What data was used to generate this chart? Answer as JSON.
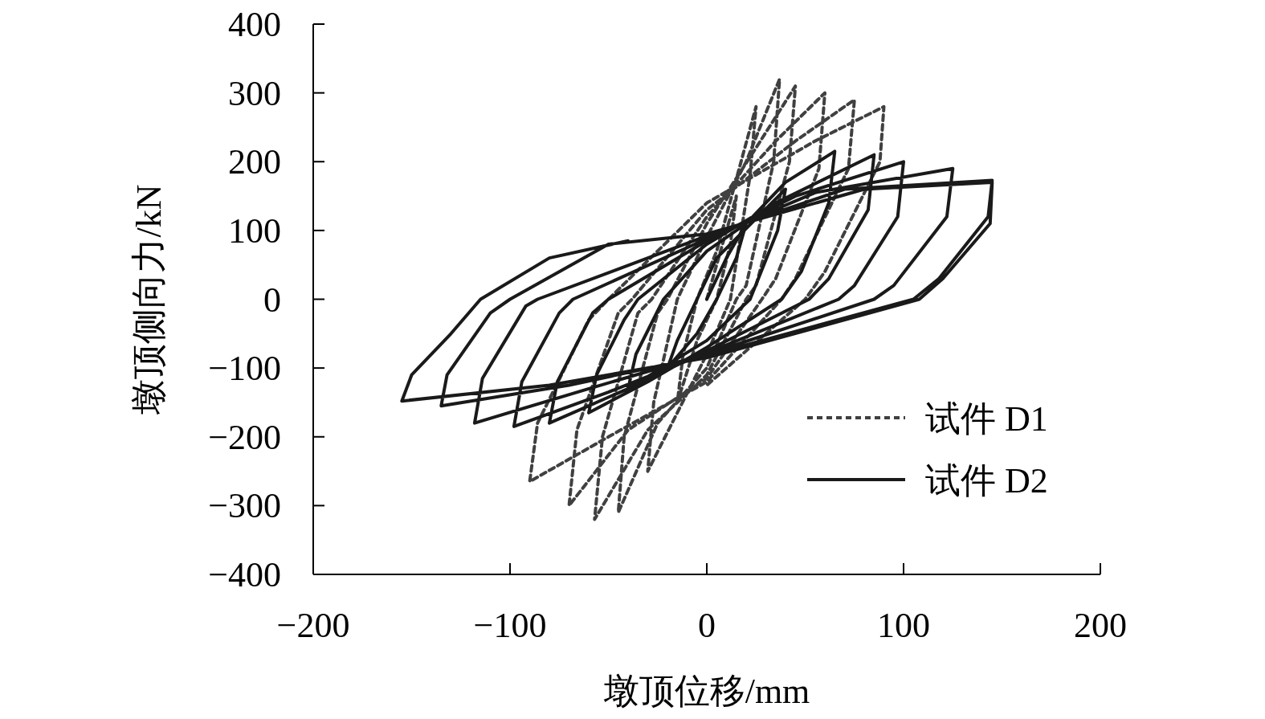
{
  "chart_data": {
    "type": "line",
    "xlabel": "墩顶位移/mm",
    "ylabel": "墩顶侧向力/kN",
    "xlim": [
      -200,
      200
    ],
    "ylim": [
      -400,
      400
    ],
    "xticks": [
      {
        "value": -200,
        "label": "−200"
      },
      {
        "value": -100,
        "label": "−100"
      },
      0,
      100,
      200
    ],
    "yticks": [
      {
        "value": -400,
        "label": "−400"
      },
      {
        "value": -300,
        "label": "−300"
      },
      {
        "value": -200,
        "label": "−200"
      },
      {
        "value": -100,
        "label": "−100"
      },
      0,
      100,
      200,
      300,
      400
    ],
    "legend": "bottom right",
    "series": [
      {
        "name": "试件 D1",
        "color": "#404040",
        "line_style": "dashed",
        "x": [
          0,
          8,
          15,
          12,
          5,
          -5,
          -15,
          -12,
          -5,
          5,
          25,
          22,
          12,
          0,
          -30,
          -27,
          -15,
          0,
          20,
          37,
          34,
          20,
          15,
          0,
          -25,
          -45,
          -42,
          -25,
          -20,
          0,
          25,
          45,
          42,
          25,
          20,
          0,
          -30,
          -57,
          -53,
          -35,
          -28,
          0,
          35,
          60,
          57,
          35,
          28,
          0,
          -40,
          -70,
          -66,
          -45,
          -38,
          0,
          45,
          75,
          72,
          45,
          38,
          0,
          -50,
          -90,
          -86,
          -60,
          -50,
          0,
          55,
          90,
          88,
          60,
          50,
          0
        ],
        "values": [
          0,
          80,
          150,
          80,
          0,
          -60,
          -150,
          -80,
          0,
          70,
          280,
          180,
          0,
          -80,
          -250,
          -150,
          0,
          90,
          200,
          320,
          200,
          20,
          0,
          -100,
          -180,
          -310,
          -200,
          -20,
          0,
          110,
          220,
          310,
          200,
          20,
          0,
          -110,
          -190,
          -320,
          -200,
          -20,
          0,
          120,
          230,
          300,
          190,
          30,
          0,
          -115,
          -190,
          -300,
          -190,
          -20,
          0,
          130,
          230,
          290,
          190,
          30,
          0,
          -120,
          -200,
          -265,
          -180,
          -30,
          0,
          140,
          230,
          280,
          200,
          40,
          0,
          -125
        ]
      },
      {
        "name": "试件 D2",
        "color": "#1a1a1a",
        "line_style": "solid",
        "x": [
          0,
          10,
          20,
          15,
          5,
          -5,
          -20,
          -15,
          -5,
          5,
          40,
          36,
          22,
          0,
          -40,
          -36,
          -22,
          0,
          20,
          40,
          65,
          62,
          48,
          38,
          0,
          -30,
          -60,
          -56,
          -42,
          -35,
          0,
          35,
          85,
          82,
          62,
          52,
          0,
          -40,
          -80,
          -76,
          -58,
          -50,
          0,
          45,
          100,
          97,
          75,
          67,
          0,
          -50,
          -98,
          -94,
          -75,
          -68,
          0,
          55,
          125,
          122,
          95,
          85,
          0,
          -60,
          -118,
          -114,
          -92,
          -86,
          0,
          70,
          145,
          143,
          118,
          105,
          0,
          -70,
          -135,
          -132,
          -110,
          -100,
          -50,
          0,
          80,
          145,
          144,
          120,
          108,
          0,
          -80,
          -155,
          -150,
          -130,
          -115,
          -80,
          -40
        ],
        "values": [
          0,
          60,
          110,
          60,
          0,
          -50,
          -100,
          -60,
          0,
          60,
          160,
          100,
          0,
          -60,
          -130,
          -80,
          0,
          70,
          110,
          170,
          215,
          140,
          40,
          0,
          -70,
          -120,
          -165,
          -110,
          -30,
          0,
          80,
          140,
          210,
          130,
          30,
          0,
          -75,
          -130,
          -180,
          -120,
          -20,
          0,
          85,
          150,
          200,
          120,
          20,
          0,
          -78,
          -135,
          -185,
          -120,
          -20,
          0,
          88,
          155,
          190,
          120,
          20,
          0,
          -80,
          -130,
          -180,
          -115,
          -10,
          0,
          92,
          160,
          173,
          120,
          30,
          0,
          -82,
          -125,
          -155,
          -110,
          -20,
          0,
          80,
          95,
          160,
          170,
          110,
          30,
          0,
          -85,
          -125,
          -148,
          -110,
          -50,
          0,
          60,
          85
        ]
      }
    ]
  }
}
